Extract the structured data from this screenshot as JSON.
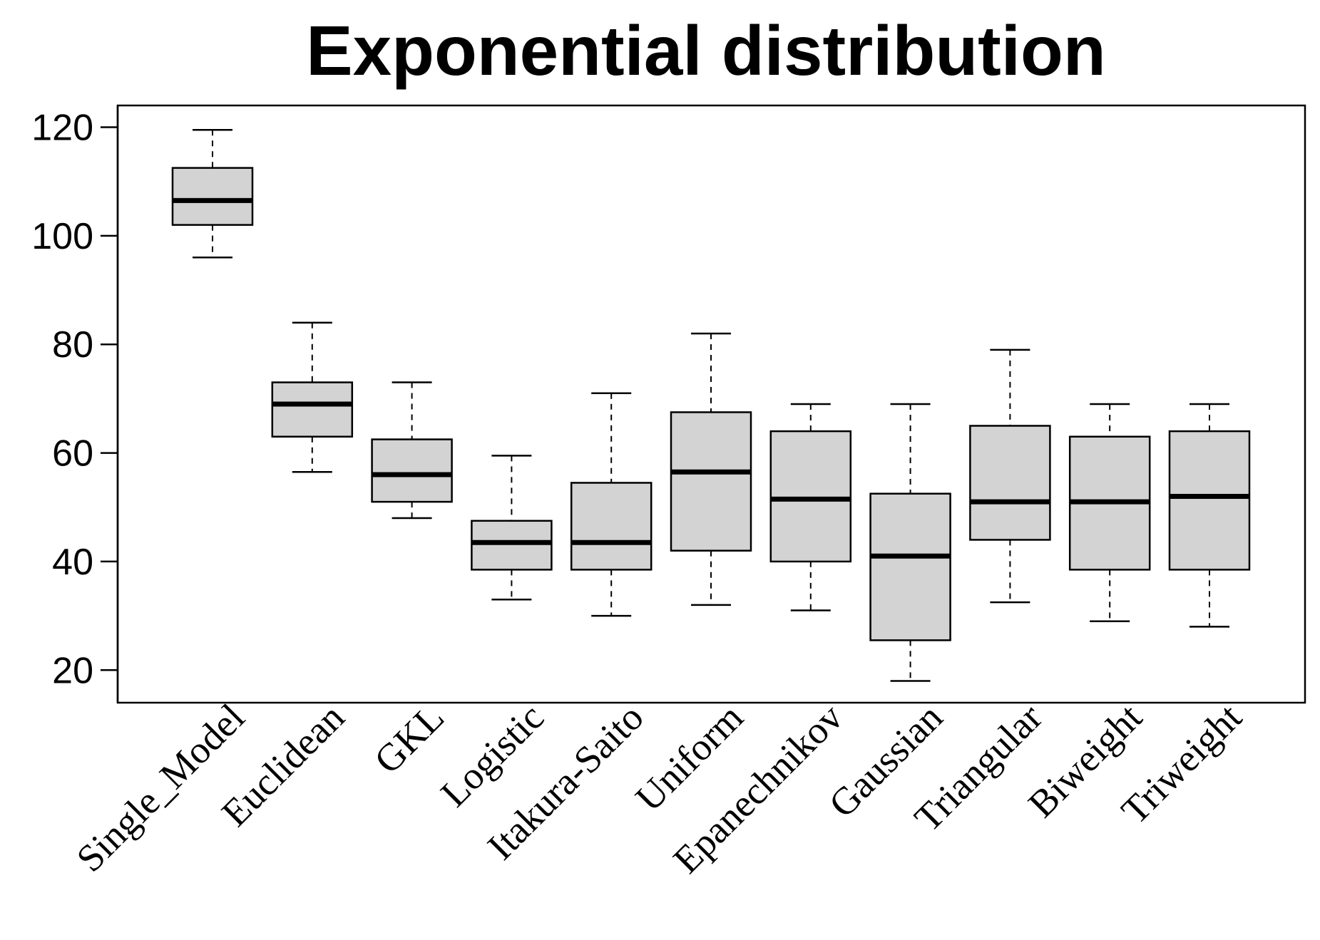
{
  "chart_data": {
    "type": "boxplot",
    "title": "Exponential distribution",
    "xlabel": "",
    "ylabel": "",
    "ylim": [
      14,
      124
    ],
    "yticks": [
      20,
      40,
      60,
      80,
      100,
      120
    ],
    "grid": false,
    "box_fill": "#d3d3d3",
    "line_color": "#000000",
    "categories": [
      "Single_Model",
      "Euclidean",
      "GKL",
      "Logistic",
      "Itakura-Saito",
      "Uniform",
      "Epanechnikov",
      "Gaussian",
      "Triangular",
      "Biweight",
      "Triweight"
    ],
    "boxes": [
      {
        "min": 96,
        "q1": 102,
        "median": 106.5,
        "q3": 112.5,
        "max": 119.5
      },
      {
        "min": 56.5,
        "q1": 63,
        "median": 69,
        "q3": 73,
        "max": 84
      },
      {
        "min": 48,
        "q1": 51,
        "median": 56,
        "q3": 62.5,
        "max": 73
      },
      {
        "min": 33,
        "q1": 38.5,
        "median": 43.5,
        "q3": 47.5,
        "max": 59.5
      },
      {
        "min": 30,
        "q1": 38.5,
        "median": 43.5,
        "q3": 54.5,
        "max": 71
      },
      {
        "min": 32,
        "q1": 42,
        "median": 56.5,
        "q3": 67.5,
        "max": 82
      },
      {
        "min": 31,
        "q1": 40,
        "median": 51.5,
        "q3": 64,
        "max": 69
      },
      {
        "min": 18,
        "q1": 25.5,
        "median": 41,
        "q3": 52.5,
        "max": 69
      },
      {
        "min": 32.5,
        "q1": 44,
        "median": 51,
        "q3": 65,
        "max": 79
      },
      {
        "min": 29,
        "q1": 38.5,
        "median": 51,
        "q3": 63,
        "max": 69
      },
      {
        "min": 28,
        "q1": 38.5,
        "median": 52,
        "q3": 64,
        "max": 69
      }
    ]
  }
}
